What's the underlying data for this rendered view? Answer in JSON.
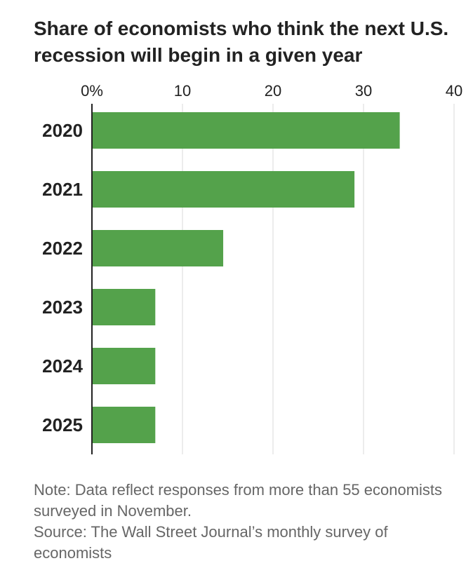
{
  "chart_data": {
    "type": "bar",
    "orientation": "horizontal",
    "title": "Share of economists who think the next U.S. recession will begin in a given year",
    "categories": [
      "2020",
      "2021",
      "2022",
      "2023",
      "2024",
      "2025"
    ],
    "values": [
      34,
      29,
      14.5,
      7,
      7,
      7
    ],
    "xlim": [
      0,
      40
    ],
    "xticks": [
      0,
      10,
      20,
      30,
      40
    ],
    "xtick_labels": [
      "0%",
      "10",
      "20",
      "30",
      "40"
    ],
    "xlabel": "",
    "ylabel": "",
    "grid": true,
    "bar_color": "#54a24b",
    "grid_color": "#d9d9d9",
    "axis_color": "#222222"
  },
  "footer": {
    "note": "Note: Data reflect responses from more than 55 economists surveyed in November.",
    "source": "Source: The Wall Street Journal’s monthly survey of economists"
  }
}
